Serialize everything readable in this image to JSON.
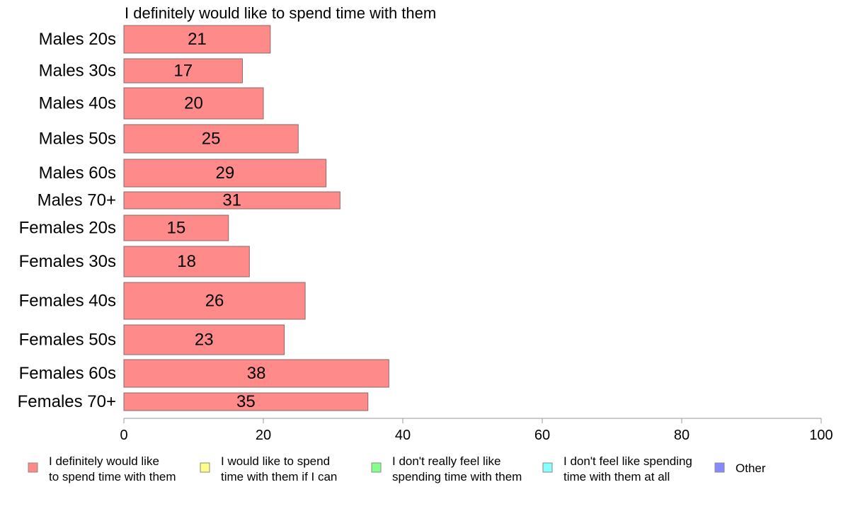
{
  "chart_data": {
    "type": "bar",
    "orientation": "horizontal",
    "title": "I definitely would like to spend time with them",
    "categories": [
      "Males 20s",
      "Males 30s",
      "Males 40s",
      "Males 50s",
      "Males 60s",
      "Males 70+",
      "Females 20s",
      "Females 30s",
      "Females 40s",
      "Females 50s",
      "Females 60s",
      "Females 70+"
    ],
    "series": [
      {
        "name": "I definitely would like to spend time with them",
        "values": [
          21,
          17,
          20,
          25,
          29,
          31,
          15,
          18,
          26,
          23,
          38,
          35
        ]
      }
    ],
    "xlim": [
      0,
      100
    ],
    "xticks": [
      "0",
      "20",
      "40",
      "60",
      "80",
      "100"
    ],
    "grid": false,
    "bar_color": "#ff8a8a",
    "bar_stroke": "#8a6a6a",
    "legend": {
      "placement": "bottom",
      "items": [
        {
          "lines": [
            "I definitely would like",
            "to spend time with them"
          ],
          "color": "#ff8a8a"
        },
        {
          "lines": [
            "I would like to spend",
            "time with them if I can"
          ],
          "color": "#ffff88"
        },
        {
          "lines": [
            "I don't really feel like",
            "spending time with them"
          ],
          "color": "#88ff88"
        },
        {
          "lines": [
            "I don't feel like spending",
            "time with them at all"
          ],
          "color": "#88ffff"
        },
        {
          "lines": [
            "Other"
          ],
          "color": "#8888ff"
        }
      ]
    }
  }
}
